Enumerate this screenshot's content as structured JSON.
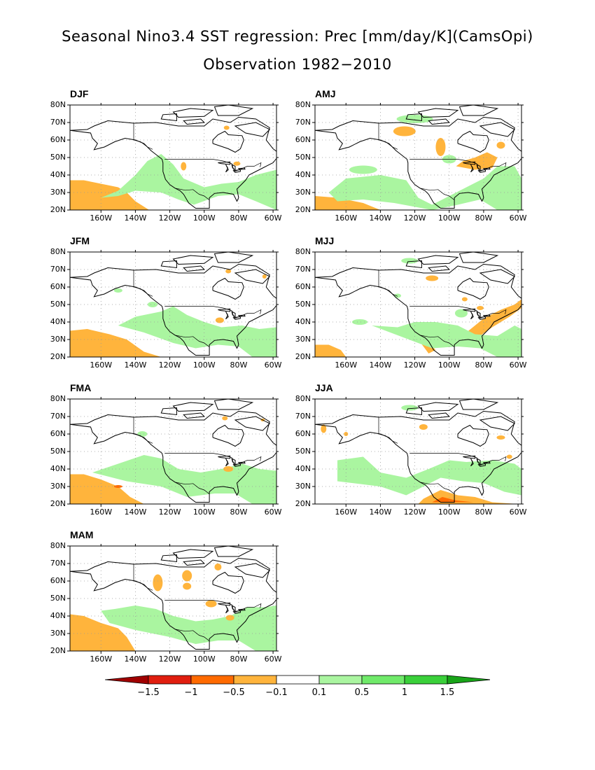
{
  "title": {
    "line1": "Seasonal Nino3.4 SST regression: Prec [mm/day/K](CamsOpi)",
    "line2": "Observation 1982−2010"
  },
  "axes": {
    "lat_labels": [
      "80N",
      "70N",
      "60N",
      "50N",
      "40N",
      "30N",
      "20N"
    ],
    "lon_labels": [
      "160W",
      "140W",
      "120W",
      "100W",
      "80W",
      "60W"
    ],
    "lon_range": [
      -178,
      -58
    ],
    "lat_range": [
      20,
      80
    ],
    "grid": "dotted"
  },
  "panels": [
    {
      "season": "DJF"
    },
    {
      "season": "AMJ"
    },
    {
      "season": "JFM"
    },
    {
      "season": "MJJ"
    },
    {
      "season": "FMA"
    },
    {
      "season": "JJA"
    },
    {
      "season": "MAM"
    }
  ],
  "colorbar": {
    "labels": [
      "−1.5",
      "−1",
      "−0.5",
      "−0.1",
      "0.1",
      "0.5",
      "1",
      "1.5"
    ],
    "colors": [
      "#a00000",
      "#e01e0f",
      "#ff6a00",
      "#ffb43c",
      "#ffffff",
      "#aaf5a0",
      "#70ea6a",
      "#3ad03a",
      "#18a418"
    ]
  }
}
